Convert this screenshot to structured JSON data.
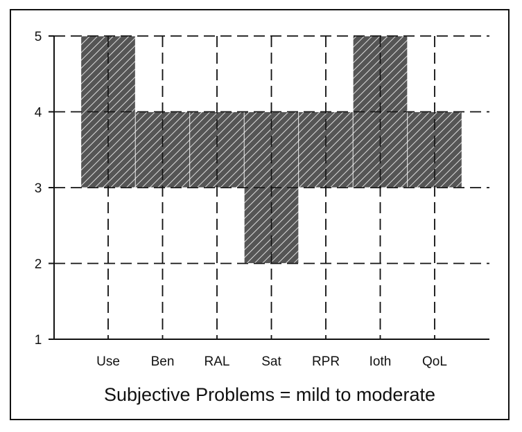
{
  "chart_data": {
    "type": "bar",
    "xlabel": "Subjective Problems = mild to moderate",
    "ylabel": "",
    "ylim": [
      1,
      5
    ],
    "yticks": [
      1,
      2,
      3,
      4,
      5
    ],
    "grid": true,
    "categories": [
      "Use",
      "Ben",
      "RAL",
      "Sat",
      "RPR",
      "Ioth",
      "QoL"
    ],
    "ranges": [
      {
        "low": 3,
        "high": 5
      },
      {
        "low": 3,
        "high": 4
      },
      {
        "low": 3,
        "high": 4
      },
      {
        "low": 2,
        "high": 4
      },
      {
        "low": 3,
        "high": 4
      },
      {
        "low": 3,
        "high": 5
      },
      {
        "low": 3,
        "high": 4
      }
    ],
    "colors": {
      "bar_fill": "#555555",
      "hatch": "#dddddd",
      "grid": "#111111"
    }
  }
}
